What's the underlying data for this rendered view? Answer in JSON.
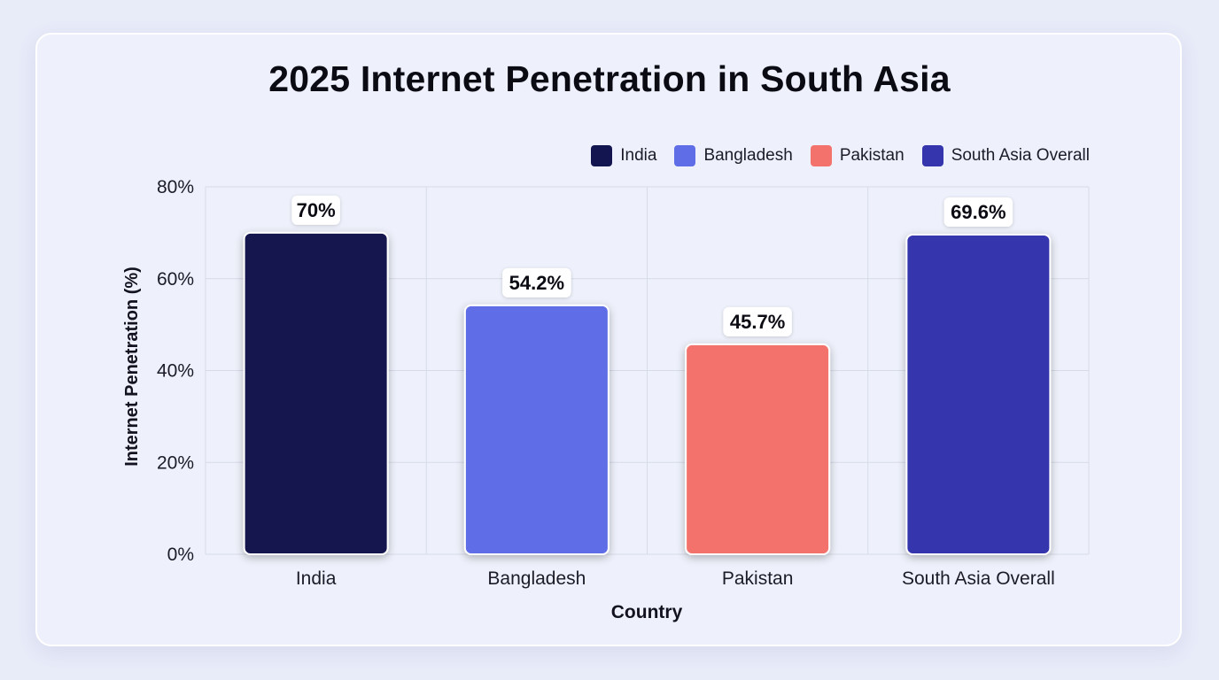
{
  "chart_data": {
    "type": "bar",
    "title": "2025 Internet Penetration in South Asia",
    "xlabel": "Country",
    "ylabel": "Internet Penetration (%)",
    "categories": [
      "India",
      "Bangladesh",
      "Pakistan",
      "South Asia Overall"
    ],
    "values": [
      70,
      54.2,
      45.7,
      69.6
    ],
    "data_labels": [
      "70%",
      "54.2%",
      "45.7%",
      "69.6%"
    ],
    "colors": [
      "#131550",
      "#5f6de6",
      "#f4726c",
      "#3535ae"
    ],
    "ylim": [
      0,
      80
    ],
    "yticks": [
      0,
      20,
      40,
      60,
      80
    ],
    "ytick_labels": [
      "0%",
      "20%",
      "40%",
      "60%",
      "80%"
    ],
    "grid": true,
    "legend": {
      "placement": "top-right",
      "entries": [
        {
          "label": "India",
          "color": "#131550"
        },
        {
          "label": "Bangladesh",
          "color": "#5f6de6"
        },
        {
          "label": "Pakistan",
          "color": "#f4726c"
        },
        {
          "label": "South Asia Overall",
          "color": "#3535ae"
        }
      ]
    }
  }
}
